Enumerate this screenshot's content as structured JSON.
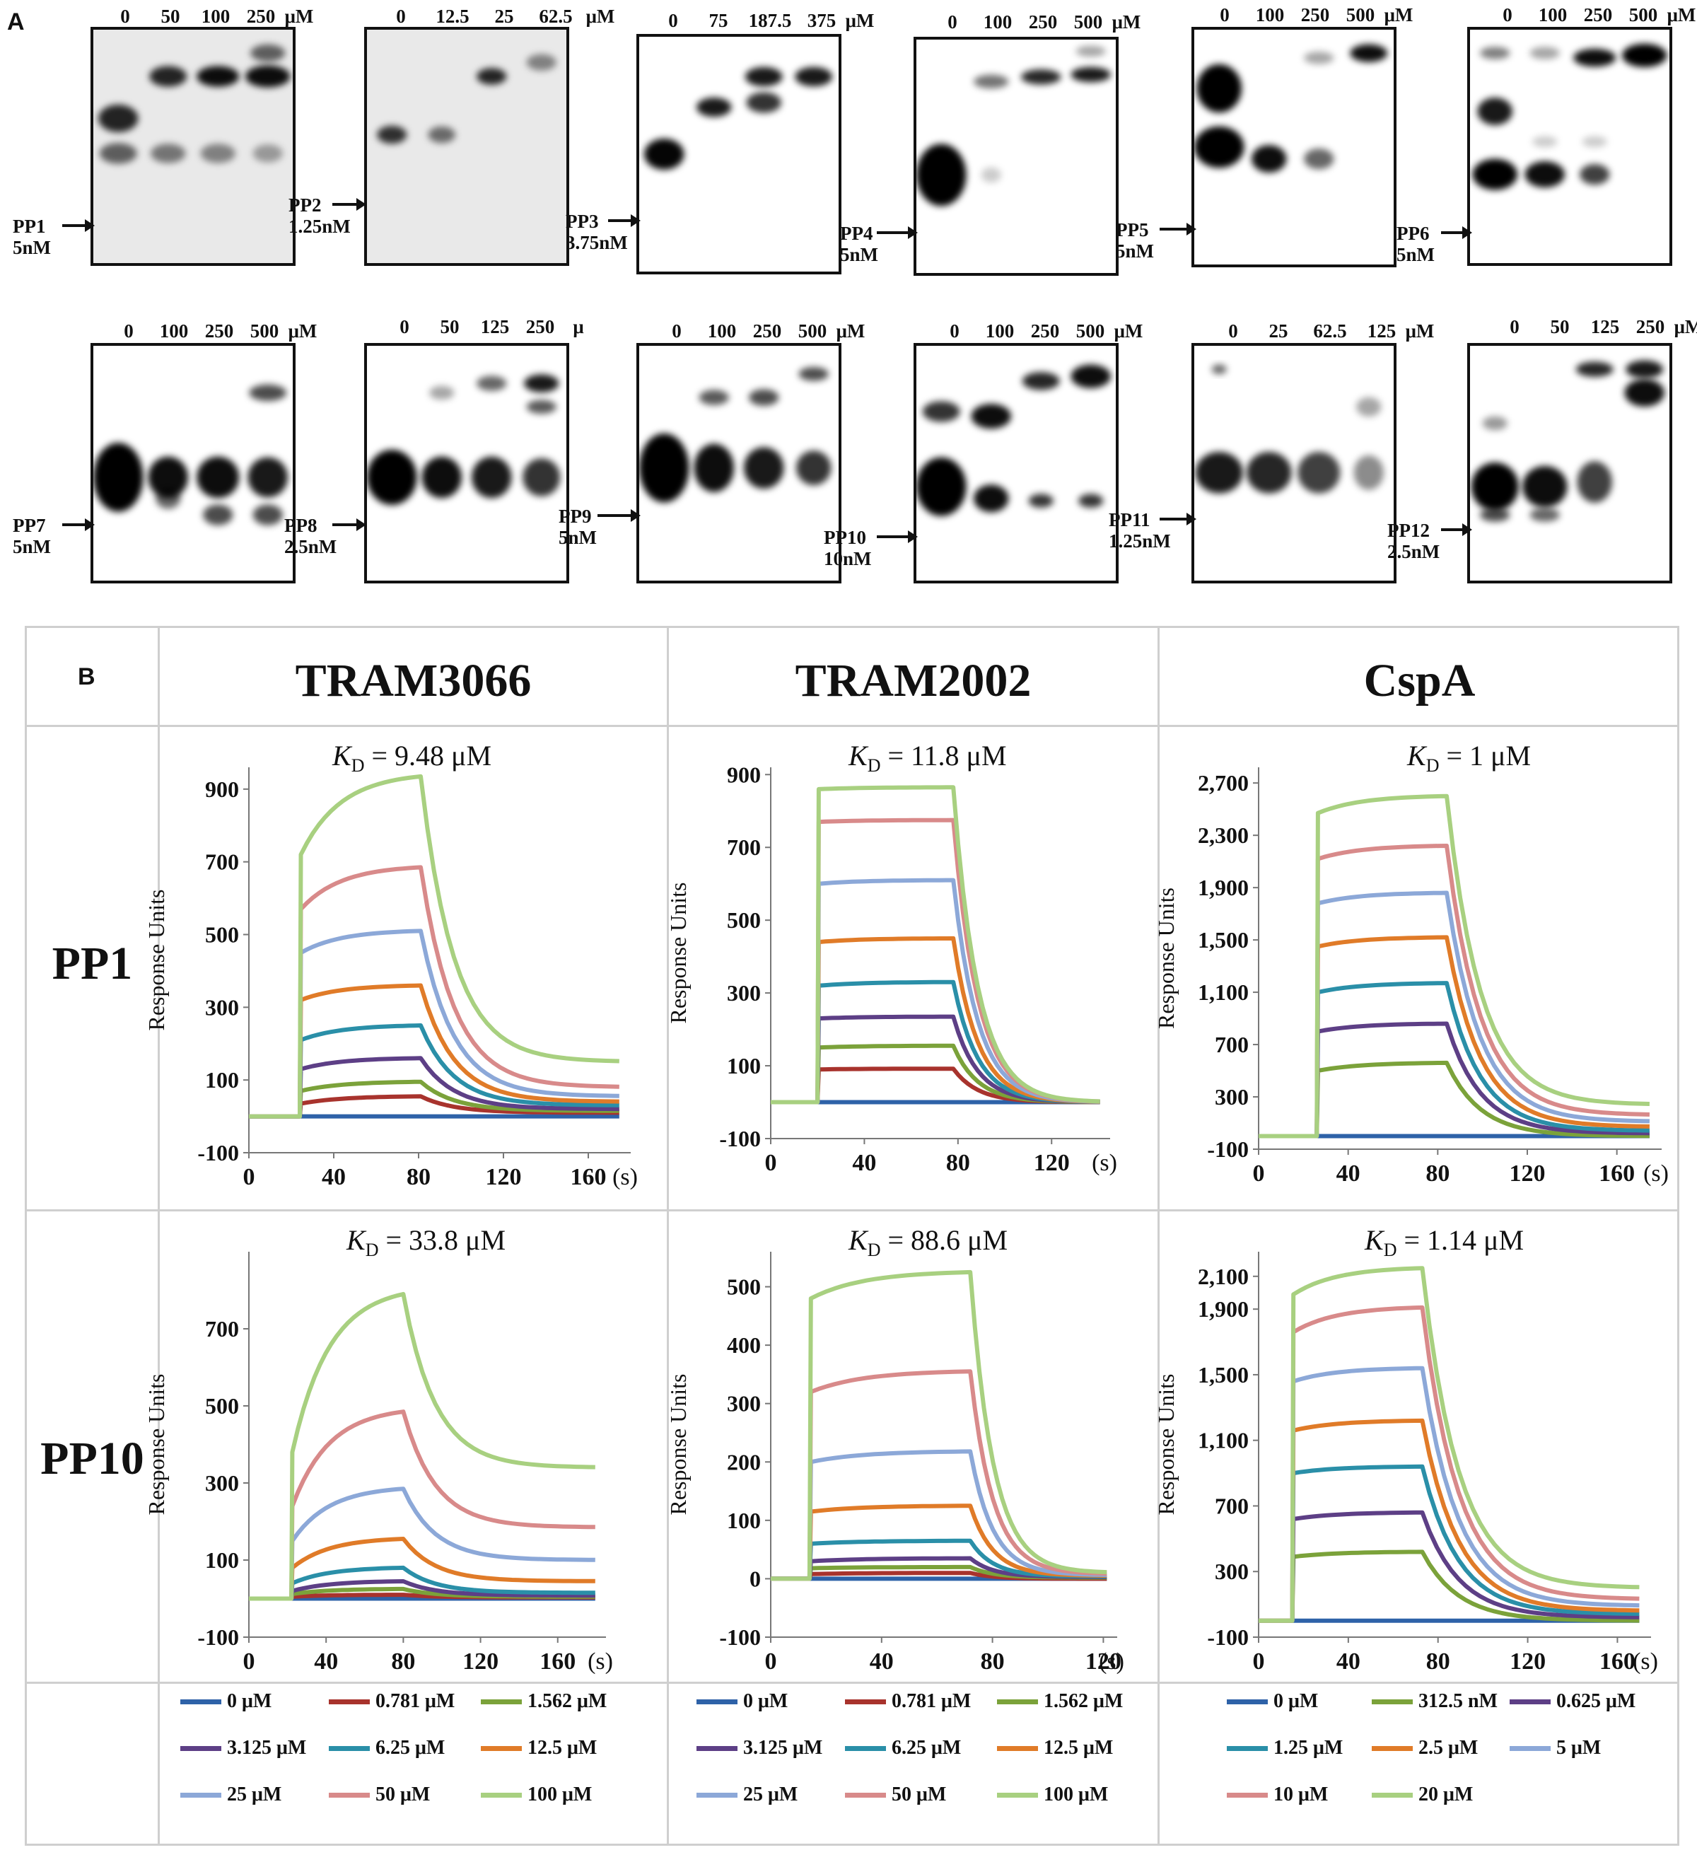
{
  "figure": {
    "panel_a_label": "A",
    "panel_b_label": "B",
    "gels": [
      {
        "probe": "PP1",
        "conc_label": "5nM",
        "lanes": [
          "0",
          "50",
          "100",
          "250"
        ],
        "unit": "μM"
      },
      {
        "probe": "PP2",
        "conc_label": "1.25nM",
        "lanes": [
          "0",
          "12.5",
          "25",
          "62.5"
        ],
        "unit": "μM"
      },
      {
        "probe": "PP3",
        "conc_label": "3.75nM",
        "lanes": [
          "0",
          "75",
          "187.5",
          "375"
        ],
        "unit": "μM"
      },
      {
        "probe": "PP4",
        "conc_label": "5nM",
        "lanes": [
          "0",
          "100",
          "250",
          "500"
        ],
        "unit": "μM"
      },
      {
        "probe": "PP5",
        "conc_label": "5nM",
        "lanes": [
          "0",
          "100",
          "250",
          "500"
        ],
        "unit": "μM"
      },
      {
        "probe": "PP6",
        "conc_label": "5nM",
        "lanes": [
          "0",
          "100",
          "250",
          "500"
        ],
        "unit": "μM"
      },
      {
        "probe": "PP7",
        "conc_label": "5nM",
        "lanes": [
          "0",
          "100",
          "250",
          "500"
        ],
        "unit": "μM"
      },
      {
        "probe": "PP8",
        "conc_label": "2.5nM",
        "lanes": [
          "0",
          "50",
          "125",
          "250"
        ],
        "unit": "μ"
      },
      {
        "probe": "PP9",
        "conc_label": "5nM",
        "lanes": [
          "0",
          "100",
          "250",
          "500"
        ],
        "unit": "μM"
      },
      {
        "probe": "PP10",
        "conc_label": "10nM",
        "lanes": [
          "0",
          "100",
          "250",
          "500"
        ],
        "unit": "μM"
      },
      {
        "probe": "PP11",
        "conc_label": "1.25nM",
        "lanes": [
          "0",
          "25",
          "62.5",
          "125"
        ],
        "unit": "μM"
      },
      {
        "probe": "PP12",
        "conc_label": "2.5nM",
        "lanes": [
          "0",
          "50",
          "125",
          "250"
        ],
        "unit": "μM"
      }
    ],
    "columns": [
      "TRAM3066",
      "TRAM2002",
      "CspA"
    ],
    "rows": [
      "PP1",
      "PP10"
    ],
    "kd_prefix": "K",
    "kd_sub": "D",
    "kd_values": [
      [
        "= 9.48 μM",
        "= 11.8 μM",
        "= 1 μM"
      ],
      [
        "= 33.8 μM",
        "= 88.6 μM",
        "= 1.14 μM"
      ]
    ],
    "ylabel": "Response Units",
    "xunit": "(s)",
    "colors": [
      "#2e62a8",
      "#a8332d",
      "#7ba23a",
      "#5d3f86",
      "#2a8fa8",
      "#e07b28",
      "#8ca8d8",
      "#d88a8a",
      "#a8d080"
    ],
    "legends": [
      [
        "0 μM",
        "0.781 μM",
        "1.562 μM",
        "3.125 μM",
        "6.25 μM",
        "12.5 μM",
        "25 μM",
        "50 μM",
        "100 μM"
      ],
      [
        "0 μM",
        "0.781 μM",
        "1.562 μM",
        "3.125 μM",
        "6.25 μM",
        "12.5 μM",
        "25 μM",
        "50 μM",
        "100 μM"
      ],
      [
        "0 μM",
        "312.5 nM",
        "0.625 μM",
        "1.25 μM",
        "2.5 μM",
        "5 μM",
        "10 μM",
        "20 μM"
      ]
    ]
  },
  "chart_data": [
    {
      "type": "line",
      "title": "PP1 / TRAM3066",
      "xlabel": "(s)",
      "ylabel": "Response Units",
      "xticks": [
        "0",
        "40",
        "80",
        "120",
        "160"
      ],
      "yticks": [
        "-100",
        "100",
        "300",
        "500",
        "700",
        "900"
      ],
      "xlim": [
        0,
        180
      ],
      "ylim": [
        -100,
        960
      ],
      "inj_start": 24,
      "inj_end": 81,
      "series": [
        {
          "name": "0 μM",
          "values": [
            0,
            0,
            0
          ]
        },
        {
          "name": "0.781 μM",
          "values": [
            35,
            55,
            10
          ]
        },
        {
          "name": "1.562 μM",
          "values": [
            70,
            95,
            15
          ]
        },
        {
          "name": "3.125 μM",
          "values": [
            130,
            160,
            20
          ]
        },
        {
          "name": "6.25 μM",
          "values": [
            210,
            250,
            30
          ]
        },
        {
          "name": "12.5 μM",
          "values": [
            320,
            360,
            40
          ]
        },
        {
          "name": "25 μM",
          "values": [
            450,
            510,
            55
          ]
        },
        {
          "name": "50 μM",
          "values": [
            570,
            685,
            80
          ]
        },
        {
          "name": "100 μM",
          "values": [
            720,
            935,
            150
          ]
        }
      ]
    },
    {
      "type": "line",
      "title": "PP1 / TRAM2002",
      "xlabel": "(s)",
      "ylabel": "Response Units",
      "xticks": [
        "0",
        "40",
        "80",
        "120"
      ],
      "yticks": [
        "-100",
        "100",
        "300",
        "500",
        "700",
        "900"
      ],
      "xlim": [
        0,
        145
      ],
      "ylim": [
        -100,
        920
      ],
      "inj_start": 20,
      "inj_end": 78,
      "series": [
        {
          "name": "0 μM",
          "values": [
            0,
            0,
            0
          ]
        },
        {
          "name": "0.781 μM",
          "values": [
            90,
            92,
            0
          ]
        },
        {
          "name": "1.562 μM",
          "values": [
            150,
            155,
            0
          ]
        },
        {
          "name": "3.125 μM",
          "values": [
            230,
            235,
            0
          ]
        },
        {
          "name": "6.25 μM",
          "values": [
            320,
            330,
            0
          ]
        },
        {
          "name": "12.5 μM",
          "values": [
            440,
            450,
            0
          ]
        },
        {
          "name": "25 μM",
          "values": [
            600,
            610,
            0
          ]
        },
        {
          "name": "50 μM",
          "values": [
            770,
            775,
            0
          ]
        },
        {
          "name": "100 μM",
          "values": [
            860,
            865,
            0
          ]
        }
      ]
    },
    {
      "type": "line",
      "title": "PP1 / CspA",
      "xlabel": "(s)",
      "ylabel": "Response Units",
      "xticks": [
        "0",
        "40",
        "80",
        "120",
        "160"
      ],
      "yticks": [
        "-100",
        "300",
        "700",
        "1,100",
        "1,500",
        "1,900",
        "2,300",
        "2,700"
      ],
      "xlim": [
        0,
        180
      ],
      "ylim": [
        -100,
        2820
      ],
      "inj_start": 26,
      "inj_end": 84,
      "series": [
        {
          "name": "0 μM",
          "values": [
            0,
            0,
            0
          ]
        },
        {
          "name": "312.5 nM",
          "values": [
            500,
            560,
            0
          ]
        },
        {
          "name": "0.625 μM",
          "values": [
            800,
            860,
            20
          ]
        },
        {
          "name": "1.25 μM",
          "values": [
            1100,
            1170,
            40
          ]
        },
        {
          "name": "2.5 μM",
          "values": [
            1450,
            1520,
            70
          ]
        },
        {
          "name": "5 μM",
          "values": [
            1780,
            1860,
            110
          ]
        },
        {
          "name": "10 μM",
          "values": [
            2120,
            2220,
            160
          ]
        },
        {
          "name": "20 μM",
          "values": [
            2470,
            2600,
            240
          ]
        }
      ]
    },
    {
      "type": "line",
      "title": "PP10 / TRAM3066",
      "xlabel": "(s)",
      "ylabel": "Response Units",
      "xticks": [
        "0",
        "40",
        "80",
        "120",
        "160"
      ],
      "yticks": [
        "-100",
        "100",
        "300",
        "500",
        "700"
      ],
      "xlim": [
        0,
        185
      ],
      "ylim": [
        -100,
        900
      ],
      "inj_start": 22,
      "inj_end": 80,
      "series": [
        {
          "name": "0 μM",
          "values": [
            0,
            0,
            0
          ]
        },
        {
          "name": "0.781 μM",
          "values": [
            5,
            10,
            3
          ]
        },
        {
          "name": "1.562 μM",
          "values": [
            12,
            25,
            5
          ]
        },
        {
          "name": "3.125 μM",
          "values": [
            20,
            45,
            8
          ]
        },
        {
          "name": "6.25 μM",
          "values": [
            40,
            80,
            15
          ]
        },
        {
          "name": "12.5 μM",
          "values": [
            80,
            155,
            45
          ]
        },
        {
          "name": "25 μM",
          "values": [
            150,
            285,
            100
          ]
        },
        {
          "name": "50 μM",
          "values": [
            240,
            485,
            185
          ]
        },
        {
          "name": "100 μM",
          "values": [
            380,
            790,
            340
          ]
        }
      ]
    },
    {
      "type": "line",
      "title": "PP10 / TRAM2002",
      "xlabel": "(s)",
      "ylabel": "Response Units",
      "xticks": [
        "0",
        "40",
        "80",
        "120"
      ],
      "yticks": [
        "-100",
        "0",
        "100",
        "200",
        "300",
        "400",
        "500"
      ],
      "xlim": [
        0,
        125
      ],
      "ylim": [
        -100,
        560
      ],
      "inj_start": 14,
      "inj_end": 72,
      "series": [
        {
          "name": "0 μM",
          "values": [
            0,
            0,
            0
          ]
        },
        {
          "name": "0.781 μM",
          "values": [
            8,
            10,
            0
          ]
        },
        {
          "name": "1.562 μM",
          "values": [
            18,
            20,
            2
          ]
        },
        {
          "name": "3.125 μM",
          "values": [
            30,
            35,
            3
          ]
        },
        {
          "name": "6.25 μM",
          "values": [
            60,
            65,
            4
          ]
        },
        {
          "name": "12.5 μM",
          "values": [
            115,
            125,
            5
          ]
        },
        {
          "name": "25 μM",
          "values": [
            200,
            218,
            6
          ]
        },
        {
          "name": "50 μM",
          "values": [
            320,
            355,
            8
          ]
        },
        {
          "name": "100 μM",
          "values": [
            480,
            525,
            10
          ]
        }
      ]
    },
    {
      "type": "line",
      "title": "PP10 / CspA",
      "xlabel": "(s)",
      "ylabel": "Response Units",
      "xticks": [
        "0",
        "40",
        "80",
        "120",
        "160"
      ],
      "yticks": [
        "-100",
        "300",
        "700",
        "1,100",
        "1,500",
        "1,900",
        "2,100"
      ],
      "xlim": [
        0,
        175
      ],
      "ylim": [
        -100,
        2250
      ],
      "inj_start": 15,
      "inj_end": 73,
      "series": [
        {
          "name": "0 μM",
          "values": [
            0,
            0,
            0
          ]
        },
        {
          "name": "312.5 nM",
          "values": [
            390,
            420,
            0
          ]
        },
        {
          "name": "0.625 μM",
          "values": [
            620,
            660,
            20
          ]
        },
        {
          "name": "1.25 μM",
          "values": [
            900,
            940,
            40
          ]
        },
        {
          "name": "2.5 μM",
          "values": [
            1160,
            1220,
            60
          ]
        },
        {
          "name": "5 μM",
          "values": [
            1460,
            1540,
            90
          ]
        },
        {
          "name": "10 μM",
          "values": [
            1760,
            1910,
            130
          ]
        },
        {
          "name": "20 μM",
          "values": [
            1990,
            2150,
            200
          ]
        }
      ]
    }
  ]
}
